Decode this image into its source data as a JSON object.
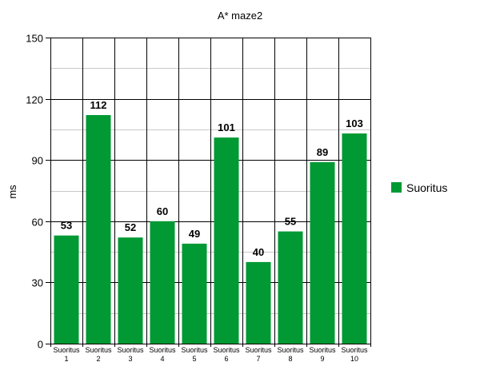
{
  "chart_data": {
    "type": "bar",
    "title": "A* maze2",
    "ylabel": "ms",
    "xlabel": "",
    "ylim": [
      0,
      150
    ],
    "yticks": [
      0,
      30,
      60,
      90,
      120,
      150
    ],
    "grid": true,
    "legend_position": "right",
    "categories": [
      {
        "line1": "Suoritus",
        "line2": "1"
      },
      {
        "line1": "Suoritus",
        "line2": "2"
      },
      {
        "line1": "Suoritus",
        "line2": "3"
      },
      {
        "line1": "Suoritus",
        "line2": "4"
      },
      {
        "line1": "Suoritus",
        "line2": "5"
      },
      {
        "line1": "Suoritus",
        "line2": "6"
      },
      {
        "line1": "Suoritus",
        "line2": "7"
      },
      {
        "line1": "Suoritus",
        "line2": "8"
      },
      {
        "line1": "Suoritus",
        "line2": "9"
      },
      {
        "line1": "Suoritus",
        "line2": "10"
      }
    ],
    "series": [
      {
        "name": "Suoritus",
        "color": "#009933",
        "values": [
          53,
          112,
          52,
          60,
          49,
          101,
          40,
          55,
          89,
          103
        ]
      }
    ]
  }
}
